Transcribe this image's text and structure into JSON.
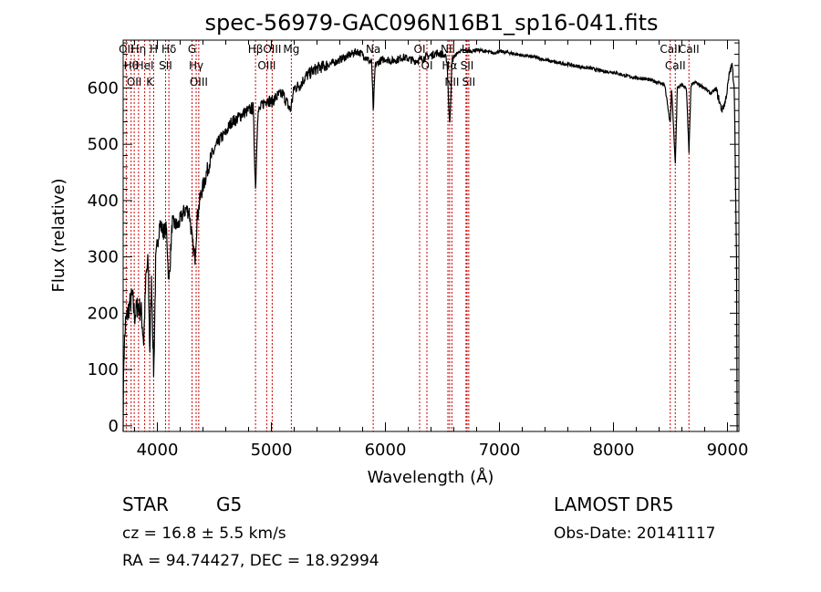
{
  "page": {
    "title": "spec-56979-GAC096N16B1_sp16-041.fits",
    "info": {
      "class": "STAR",
      "subclass": "G5",
      "survey": "LAMOST DR5",
      "cz": "cz = 16.8 ± 5.5 km/s",
      "obs_date": "Obs-Date: 20141117",
      "radec": "RA =  94.74427, DEC =  18.92994"
    }
  },
  "chart_data": {
    "type": "line",
    "title": "spec-56979-GAC096N16B1_sp16-041.fits",
    "xlabel": "Wavelength (Å)",
    "ylabel": "Flux (relative)",
    "xlim": [
      3700,
      9100
    ],
    "ylim": [
      -10,
      685
    ],
    "x_ticks": [
      4000,
      5000,
      6000,
      7000,
      8000,
      9000
    ],
    "y_ticks": [
      0,
      100,
      200,
      300,
      400,
      500,
      600
    ],
    "grid": false,
    "line_color": "#000000",
    "marker_color": "#cc0000",
    "spectrum_anchors": [
      [
        3700,
        0
      ],
      [
        3705,
        120
      ],
      [
        3720,
        180
      ],
      [
        3750,
        210
      ],
      [
        3780,
        230
      ],
      [
        3800,
        195
      ],
      [
        3830,
        215
      ],
      [
        3860,
        200
      ],
      [
        3880,
        150
      ],
      [
        3900,
        265
      ],
      [
        3920,
        290
      ],
      [
        3933,
        130
      ],
      [
        3950,
        260
      ],
      [
        3968,
        90
      ],
      [
        3985,
        285
      ],
      [
        4000,
        320
      ],
      [
        4020,
        360
      ],
      [
        4050,
        345
      ],
      [
        4080,
        350
      ],
      [
        4101,
        250
      ],
      [
        4130,
        360
      ],
      [
        4180,
        355
      ],
      [
        4220,
        375
      ],
      [
        4250,
        385
      ],
      [
        4280,
        380
      ],
      [
        4310,
        320
      ],
      [
        4330,
        300
      ],
      [
        4350,
        370
      ],
      [
        4380,
        410
      ],
      [
        4420,
        440
      ],
      [
        4460,
        470
      ],
      [
        4500,
        490
      ],
      [
        4550,
        510
      ],
      [
        4600,
        520
      ],
      [
        4650,
        540
      ],
      [
        4700,
        545
      ],
      [
        4750,
        555
      ],
      [
        4800,
        560
      ],
      [
        4840,
        565
      ],
      [
        4861,
        420
      ],
      [
        4880,
        555
      ],
      [
        4920,
        570
      ],
      [
        4960,
        580
      ],
      [
        5000,
        575
      ],
      [
        5050,
        585
      ],
      [
        5100,
        590
      ],
      [
        5167,
        560
      ],
      [
        5200,
        600
      ],
      [
        5250,
        605
      ],
      [
        5300,
        620
      ],
      [
        5350,
        628
      ],
      [
        5400,
        635
      ],
      [
        5450,
        638
      ],
      [
        5500,
        642
      ],
      [
        5550,
        645
      ],
      [
        5600,
        650
      ],
      [
        5650,
        655
      ],
      [
        5700,
        660
      ],
      [
        5750,
        665
      ],
      [
        5800,
        660
      ],
      [
        5850,
        650
      ],
      [
        5880,
        645
      ],
      [
        5893,
        555
      ],
      [
        5910,
        640
      ],
      [
        5950,
        648
      ],
      [
        6000,
        652
      ],
      [
        6050,
        648
      ],
      [
        6100,
        650
      ],
      [
        6150,
        655
      ],
      [
        6200,
        652
      ],
      [
        6250,
        648
      ],
      [
        6300,
        650
      ],
      [
        6350,
        655
      ],
      [
        6400,
        658
      ],
      [
        6450,
        662
      ],
      [
        6500,
        660
      ],
      [
        6540,
        650
      ],
      [
        6563,
        530
      ],
      [
        6585,
        650
      ],
      [
        6620,
        660
      ],
      [
        6650,
        665
      ],
      [
        6700,
        667
      ],
      [
        6750,
        665
      ],
      [
        6800,
        668
      ],
      [
        6850,
        666
      ],
      [
        6900,
        664
      ],
      [
        6950,
        662
      ],
      [
        7000,
        665
      ],
      [
        7100,
        662
      ],
      [
        7200,
        658
      ],
      [
        7300,
        655
      ],
      [
        7400,
        650
      ],
      [
        7500,
        645
      ],
      [
        7600,
        642
      ],
      [
        7700,
        638
      ],
      [
        7800,
        635
      ],
      [
        7900,
        630
      ],
      [
        8000,
        628
      ],
      [
        8100,
        622
      ],
      [
        8200,
        618
      ],
      [
        8300,
        615
      ],
      [
        8400,
        610
      ],
      [
        8450,
        605
      ],
      [
        8498,
        535
      ],
      [
        8510,
        600
      ],
      [
        8542,
        465
      ],
      [
        8560,
        600
      ],
      [
        8600,
        605
      ],
      [
        8640,
        600
      ],
      [
        8662,
        485
      ],
      [
        8680,
        605
      ],
      [
        8720,
        610
      ],
      [
        8760,
        605
      ],
      [
        8800,
        600
      ],
      [
        8850,
        590
      ],
      [
        8900,
        598
      ],
      [
        8950,
        560
      ],
      [
        8980,
        575
      ],
      [
        9000,
        600
      ],
      [
        9020,
        630
      ],
      [
        9040,
        640
      ],
      [
        9060,
        600
      ],
      [
        9080,
        280
      ]
    ],
    "line_markers": [
      {
        "x": 3727,
        "labels": [
          "OII"
        ]
      },
      {
        "x": 3770,
        "labels": [
          "Hθ"
        ]
      },
      {
        "x": 3797,
        "labels": [
          "OII"
        ]
      },
      {
        "x": 3835,
        "labels": [
          "Hη"
        ]
      },
      {
        "x": 3889,
        "labels": [
          "HeI"
        ]
      },
      {
        "x": 3933,
        "labels": [
          "K"
        ]
      },
      {
        "x": 3968,
        "labels": [
          "H"
        ]
      },
      {
        "x": 4072,
        "labels": [
          "SII"
        ]
      },
      {
        "x": 4101,
        "labels": [
          "Hδ"
        ]
      },
      {
        "x": 4304,
        "labels": [
          "G"
        ]
      },
      {
        "x": 4340,
        "labels": [
          "Hγ"
        ]
      },
      {
        "x": 4363,
        "labels": [
          "OIII"
        ]
      },
      {
        "x": 4861,
        "labels": [
          "Hβ"
        ]
      },
      {
        "x": 4959,
        "labels": [
          "OIII"
        ]
      },
      {
        "x": 5007,
        "labels": [
          "OIII"
        ]
      },
      {
        "x": 5175,
        "labels": [
          "Mg"
        ]
      },
      {
        "x": 5893,
        "labels": [
          "Na"
        ]
      },
      {
        "x": 6300,
        "labels": [
          "OI"
        ]
      },
      {
        "x": 6364,
        "labels": [
          "OI"
        ]
      },
      {
        "x": 6548,
        "labels": [
          "NII"
        ]
      },
      {
        "x": 6563,
        "labels": [
          "Hα"
        ]
      },
      {
        "x": 6583,
        "labels": [
          "NII"
        ]
      },
      {
        "x": 6707,
        "labels": [
          "Li"
        ]
      },
      {
        "x": 6716,
        "labels": [
          "SII"
        ]
      },
      {
        "x": 6731,
        "labels": [
          "SII"
        ]
      },
      {
        "x": 8498,
        "labels": [
          "CaII"
        ]
      },
      {
        "x": 8542,
        "labels": [
          "CaII"
        ]
      },
      {
        "x": 8662,
        "labels": [
          "CaII"
        ]
      }
    ]
  }
}
